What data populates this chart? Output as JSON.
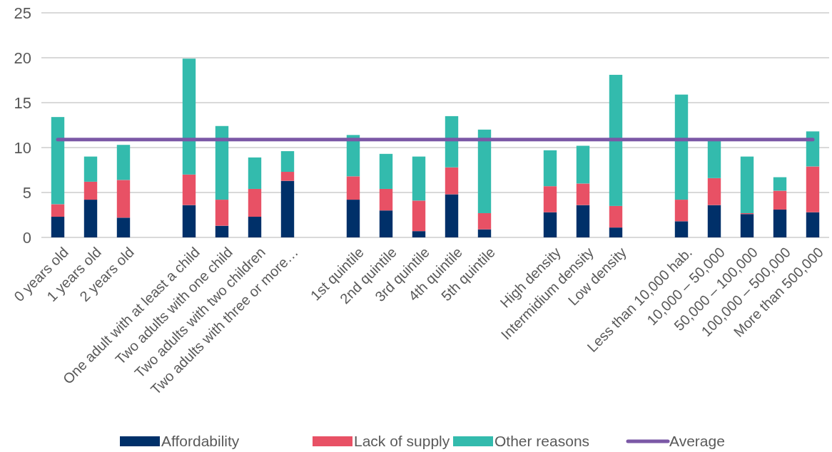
{
  "chart_data": {
    "type": "bar",
    "stacked": true,
    "categories": [
      "0 years old",
      "1 years old",
      "2 years old",
      null,
      "One adult with at least a child",
      "Two adults with one child",
      "Two adults with two children",
      "Two adults with three or more…",
      null,
      "1st quintile",
      "2nd quintile",
      "3rd quintile",
      "4th quintile",
      "5th quintile",
      null,
      "High density",
      "Intermidium density",
      "Low density",
      null,
      "Less than 10,000 hab.",
      "10,000 – 50,000",
      "50,000 – 100,000",
      "100,000 – 500,000",
      "More than 500,000"
    ],
    "series": [
      {
        "name": "Affordability",
        "color": "#003069",
        "values": [
          2.3,
          4.2,
          2.2,
          null,
          3.6,
          1.3,
          2.3,
          6.3,
          null,
          4.2,
          3.0,
          0.7,
          4.8,
          0.9,
          null,
          2.8,
          3.6,
          1.1,
          null,
          1.8,
          3.6,
          2.6,
          3.1,
          2.8
        ]
      },
      {
        "name": "Lack of supply",
        "color": "#e85165",
        "values": [
          1.4,
          2.0,
          4.2,
          null,
          3.4,
          2.9,
          3.1,
          1.0,
          null,
          2.6,
          2.4,
          3.4,
          3.0,
          1.8,
          null,
          2.9,
          2.4,
          2.4,
          null,
          2.4,
          3.0,
          0.1,
          2.1,
          5.1
        ]
      },
      {
        "name": "Other reasons",
        "color": "#33bbad",
        "values": [
          9.7,
          2.8,
          3.9,
          null,
          12.9,
          8.2,
          3.5,
          2.3,
          null,
          4.6,
          3.9,
          4.9,
          5.7,
          9.3,
          null,
          4.0,
          4.2,
          14.6,
          null,
          11.7,
          4.3,
          6.3,
          1.5,
          3.9
        ]
      },
      {
        "name": "Average",
        "type": "line",
        "color": "#7b58a6",
        "values": [
          10.9,
          10.9,
          10.9,
          10.9,
          10.9,
          10.9,
          10.9,
          10.9,
          10.9,
          10.9,
          10.9,
          10.9,
          10.9,
          10.9,
          10.9,
          10.9,
          10.9,
          10.9,
          10.9,
          10.9,
          10.9,
          10.9,
          10.9,
          10.9
        ]
      }
    ],
    "ylim": [
      0,
      25
    ],
    "yticks": [
      0,
      5,
      10,
      15,
      20,
      25
    ],
    "grid": "y",
    "legend": "bottom"
  }
}
